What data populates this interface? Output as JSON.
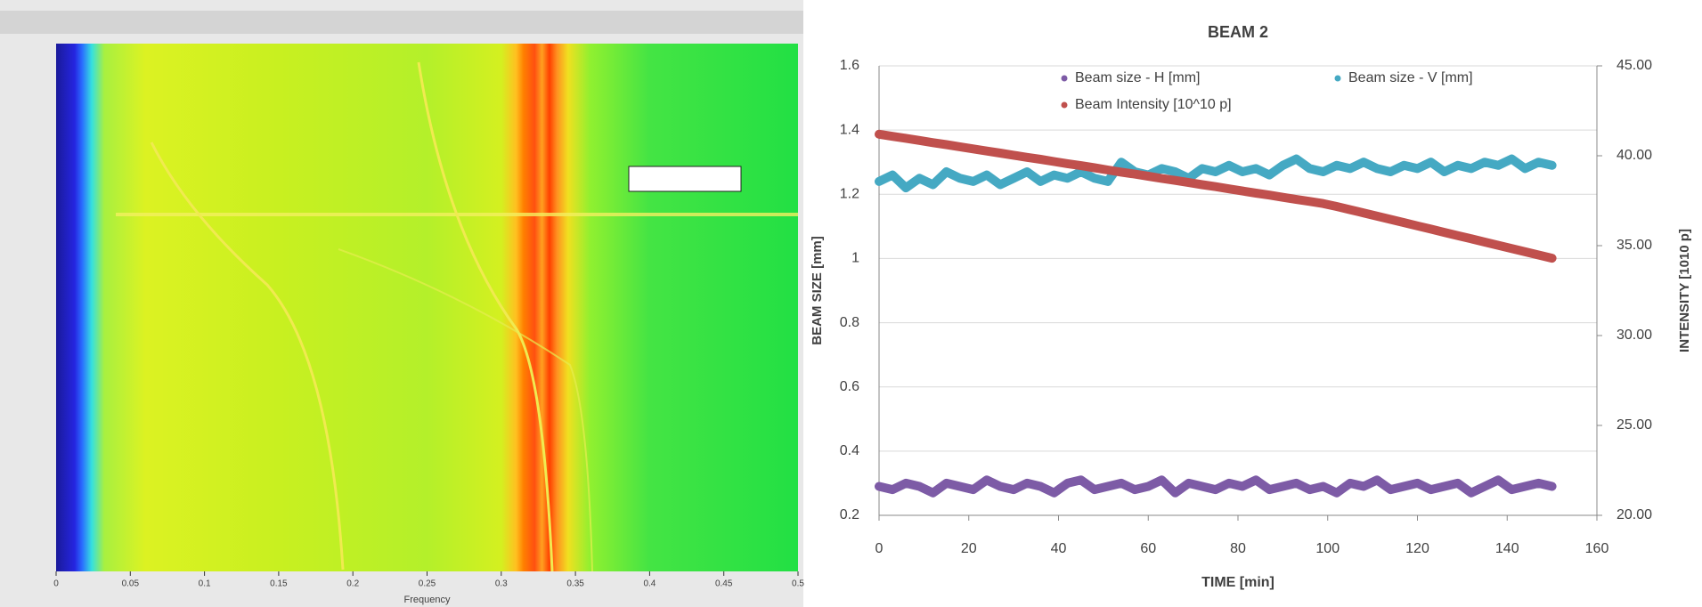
{
  "chart_data": [
    {
      "type": "spectrogram",
      "xlabel": "Frequency",
      "xlim": [
        0,
        0.5
      ],
      "xticks": [
        0,
        0.05,
        0.1,
        0.15,
        0.2,
        0.25,
        0.3,
        0.35,
        0.4,
        0.45,
        0.5
      ]
    },
    {
      "type": "line",
      "title": "BEAM 2",
      "xlabel": "TIME [min]",
      "ylabel": "BEAM SIZE [mm]",
      "y2label": "INTENSITY [1010 p]",
      "xlim": [
        0,
        160
      ],
      "xticks": [
        0,
        20,
        40,
        60,
        80,
        100,
        120,
        140,
        160
      ],
      "ylim": [
        0.2,
        1.6
      ],
      "yticks": [
        0.2,
        0.4,
        0.6,
        0.8,
        1,
        1.2,
        1.4,
        1.6
      ],
      "y2lim": [
        20,
        45
      ],
      "y2ticks": [
        {
          "value": 20,
          "label": "20.00"
        },
        {
          "value": 25,
          "label": "25.00"
        },
        {
          "value": 30,
          "label": "30.00"
        },
        {
          "value": 35,
          "label": "35.00"
        },
        {
          "value": 40,
          "label": "40.00"
        },
        {
          "value": 45,
          "label": "45.00"
        }
      ],
      "grid": true,
      "x": [
        0,
        3,
        6,
        9,
        12,
        15,
        18,
        21,
        24,
        27,
        30,
        33,
        36,
        39,
        42,
        45,
        48,
        51,
        54,
        57,
        60,
        63,
        66,
        69,
        72,
        75,
        78,
        81,
        84,
        87,
        90,
        93,
        96,
        99,
        102,
        105,
        108,
        111,
        114,
        117,
        120,
        123,
        126,
        129,
        132,
        135,
        138,
        141,
        144,
        147,
        150
      ],
      "series": [
        {
          "name": "Beam size - H [mm]",
          "color": "#7d5ba6",
          "axis": "y",
          "values": [
            0.29,
            0.28,
            0.3,
            0.29,
            0.27,
            0.3,
            0.29,
            0.28,
            0.31,
            0.29,
            0.28,
            0.3,
            0.29,
            0.27,
            0.3,
            0.31,
            0.28,
            0.29,
            0.3,
            0.28,
            0.29,
            0.31,
            0.27,
            0.3,
            0.29,
            0.28,
            0.3,
            0.29,
            0.31,
            0.28,
            0.29,
            0.3,
            0.28,
            0.29,
            0.27,
            0.3,
            0.29,
            0.31,
            0.28,
            0.29,
            0.3,
            0.28,
            0.29,
            0.3,
            0.27,
            0.29,
            0.31,
            0.28,
            0.29,
            0.3,
            0.29
          ]
        },
        {
          "name": "Beam size - V [mm]",
          "color": "#45a9c3",
          "axis": "y",
          "values": [
            1.24,
            1.26,
            1.22,
            1.25,
            1.23,
            1.27,
            1.25,
            1.24,
            1.26,
            1.23,
            1.25,
            1.27,
            1.24,
            1.26,
            1.25,
            1.27,
            1.25,
            1.24,
            1.3,
            1.27,
            1.26,
            1.28,
            1.27,
            1.25,
            1.28,
            1.27,
            1.29,
            1.27,
            1.28,
            1.26,
            1.29,
            1.31,
            1.28,
            1.27,
            1.29,
            1.28,
            1.3,
            1.28,
            1.27,
            1.29,
            1.28,
            1.3,
            1.27,
            1.29,
            1.28,
            1.3,
            1.29,
            1.31,
            1.28,
            1.3,
            1.29
          ]
        },
        {
          "name": "Beam Intensity [10^10 p]",
          "color": "#c0504d",
          "axis": "y2",
          "values": [
            41.2,
            41.08,
            40.97,
            40.85,
            40.73,
            40.62,
            40.5,
            40.38,
            40.26,
            40.15,
            40.03,
            39.91,
            39.8,
            39.68,
            39.56,
            39.45,
            39.33,
            39.21,
            39.09,
            38.98,
            38.86,
            38.74,
            38.63,
            38.51,
            38.39,
            38.28,
            38.16,
            38.04,
            37.92,
            37.81,
            37.69,
            37.57,
            37.46,
            37.34,
            37.18,
            37.0,
            36.82,
            36.64,
            36.46,
            36.28,
            36.1,
            35.92,
            35.74,
            35.56,
            35.38,
            35.2,
            35.02,
            34.84,
            34.66,
            34.48,
            34.3
          ]
        }
      ]
    }
  ]
}
